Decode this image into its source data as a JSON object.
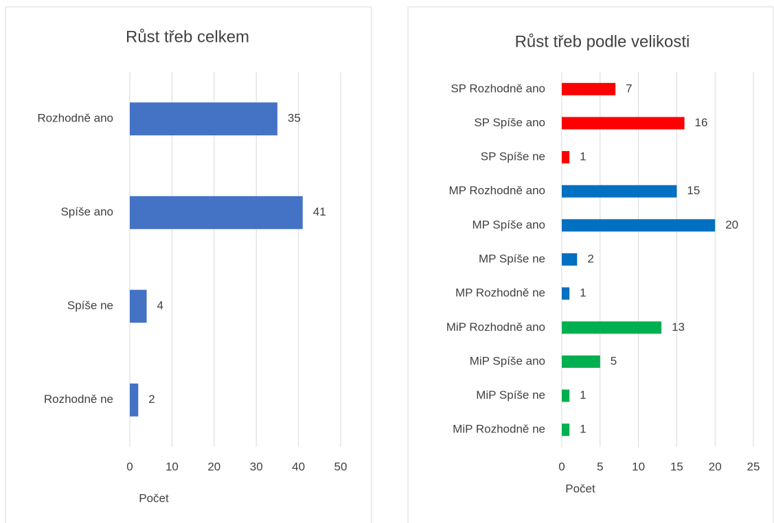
{
  "chart_data": [
    {
      "type": "hbar",
      "title": "Růst třeb celkem",
      "categories": [
        "Rozhodně ano",
        "Spíše ano",
        "Spíše ne",
        "Rozhodně ne"
      ],
      "values": [
        35,
        41,
        4,
        2
      ],
      "color": "#4472c4",
      "xlabel": "Počet",
      "xlim": [
        0,
        50
      ],
      "xticks": [
        0,
        10,
        20,
        30,
        40,
        50
      ],
      "grid": true
    },
    {
      "type": "hbar",
      "title": "Růst třeb podle velikosti",
      "categories": [
        "SP Rozhodně ano",
        "SP Spíše ano",
        "SP Spíše ne",
        "MP Rozhodně ano",
        "MP Spíše ano",
        "MP Spíše ne",
        "MP Rozhodně ne",
        "MiP Rozhodně ano",
        "MiP Spíše ano",
        "MiP Spíše ne",
        "MiP Rozhodně ne"
      ],
      "values": [
        7,
        16,
        1,
        15,
        20,
        2,
        1,
        13,
        5,
        1,
        1
      ],
      "colors": [
        "#ff0000",
        "#ff0000",
        "#ff0000",
        "#0070c0",
        "#0070c0",
        "#0070c0",
        "#0070c0",
        "#00b050",
        "#00b050",
        "#00b050",
        "#00b050"
      ],
      "xlabel": "Počet",
      "xlim": [
        0,
        25
      ],
      "xticks": [
        0,
        5,
        10,
        15,
        20,
        25
      ],
      "grid": true
    }
  ]
}
